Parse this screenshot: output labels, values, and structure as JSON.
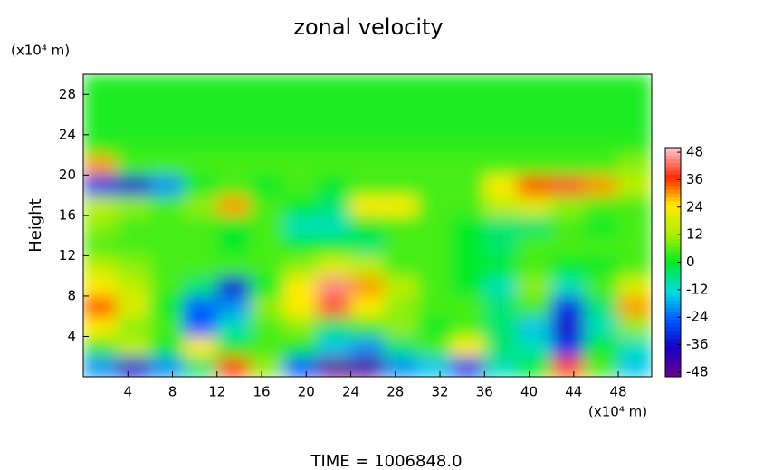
{
  "chart_data": {
    "type": "heatmap",
    "title": "zonal velocity",
    "y_unit": "(x10⁴ m)",
    "x_unit": "(x10⁴ m)",
    "ylabel": "Height",
    "annotation": "TIME = 1006848.0",
    "xlim": [
      0,
      51
    ],
    "ylim": [
      0,
      30
    ],
    "xticks": [
      4,
      8,
      12,
      16,
      20,
      24,
      28,
      32,
      36,
      40,
      44,
      48
    ],
    "yticks": [
      4,
      8,
      12,
      16,
      20,
      24,
      28
    ],
    "zlim": [
      -50,
      50
    ],
    "zticks": [
      -48,
      -36,
      -24,
      -12,
      0,
      12,
      24,
      36,
      48
    ],
    "z": [
      [
        -20,
        -36,
        -20,
        -5,
        38,
        10,
        -25,
        -48,
        -45,
        -20,
        -15,
        -30,
        -10,
        0,
        35,
        5,
        -15
      ],
      [
        5,
        15,
        0,
        25,
        0,
        5,
        0,
        -15,
        -20,
        -5,
        5,
        25,
        -5,
        -10,
        -30,
        0,
        -10
      ],
      [
        25,
        10,
        5,
        -25,
        -10,
        5,
        10,
        -5,
        5,
        10,
        0,
        5,
        -5,
        -15,
        -36,
        -10,
        10
      ],
      [
        35,
        20,
        0,
        -25,
        -20,
        10,
        25,
        40,
        25,
        10,
        5,
        5,
        -5,
        5,
        -30,
        -5,
        30
      ],
      [
        25,
        15,
        5,
        -5,
        -35,
        0,
        25,
        45,
        30,
        15,
        5,
        0,
        -10,
        10,
        -10,
        5,
        20
      ],
      [
        15,
        10,
        5,
        5,
        5,
        5,
        10,
        20,
        15,
        5,
        5,
        0,
        0,
        5,
        0,
        0,
        5
      ],
      [
        5,
        5,
        5,
        5,
        0,
        5,
        0,
        0,
        -5,
        5,
        5,
        0,
        -5,
        5,
        5,
        5,
        5
      ],
      [
        10,
        5,
        5,
        5,
        0,
        5,
        -10,
        -10,
        0,
        5,
        5,
        0,
        -5,
        -5,
        5,
        0,
        5
      ],
      [
        15,
        10,
        5,
        10,
        30,
        5,
        0,
        -5,
        25,
        25,
        5,
        5,
        15,
        20,
        10,
        5,
        5
      ],
      [
        -30,
        -36,
        -20,
        0,
        5,
        0,
        5,
        0,
        5,
        5,
        5,
        5,
        25,
        35,
        40,
        30,
        15
      ],
      [
        30,
        5,
        5,
        5,
        5,
        5,
        5,
        5,
        5,
        5,
        5,
        5,
        5,
        5,
        5,
        5,
        10
      ],
      [
        3,
        3,
        3,
        3,
        3,
        3,
        3,
        3,
        3,
        3,
        3,
        3,
        3,
        3,
        3,
        3,
        3
      ],
      [
        2,
        2,
        2,
        2,
        2,
        2,
        2,
        2,
        2,
        2,
        2,
        2,
        2,
        2,
        2,
        2,
        2
      ],
      [
        2,
        2,
        2,
        2,
        2,
        2,
        2,
        2,
        2,
        2,
        2,
        2,
        2,
        2,
        2,
        2,
        2
      ],
      [
        2,
        2,
        2,
        2,
        2,
        2,
        2,
        2,
        2,
        2,
        2,
        2,
        2,
        2,
        2,
        2,
        2
      ]
    ]
  }
}
